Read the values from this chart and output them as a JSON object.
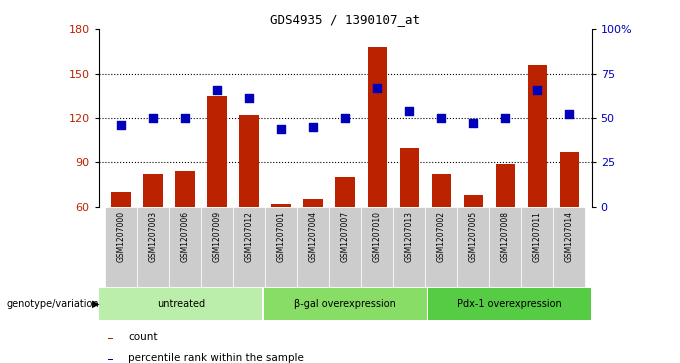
{
  "title": "GDS4935 / 1390107_at",
  "samples": [
    "GSM1207000",
    "GSM1207003",
    "GSM1207006",
    "GSM1207009",
    "GSM1207012",
    "GSM1207001",
    "GSM1207004",
    "GSM1207007",
    "GSM1207010",
    "GSM1207013",
    "GSM1207002",
    "GSM1207005",
    "GSM1207008",
    "GSM1207011",
    "GSM1207014"
  ],
  "counts": [
    70,
    82,
    84,
    135,
    122,
    62,
    65,
    80,
    168,
    100,
    82,
    68,
    89,
    156,
    97
  ],
  "percentiles": [
    46,
    50,
    50,
    66,
    61,
    44,
    45,
    50,
    67,
    54,
    50,
    47,
    50,
    66,
    52
  ],
  "groups": [
    {
      "label": "untreated",
      "start": 0,
      "end": 5,
      "color": "#bbeeaa"
    },
    {
      "label": "β-gal overexpression",
      "start": 5,
      "end": 10,
      "color": "#88dd66"
    },
    {
      "label": "Pdx-1 overexpression",
      "start": 10,
      "end": 15,
      "color": "#55cc44"
    }
  ],
  "ylim_left": [
    60,
    180
  ],
  "ylim_right": [
    0,
    100
  ],
  "yticks_left": [
    60,
    90,
    120,
    150,
    180
  ],
  "yticks_right": [
    0,
    25,
    50,
    75,
    100
  ],
  "bar_color": "#bb2200",
  "dot_color": "#0000bb",
  "bar_width": 0.6,
  "dot_size": 28,
  "grid_color": "#000000",
  "legend_count": "count",
  "legend_pct": "percentile rank within the sample",
  "xlabel_genotype": "genotype/variation"
}
